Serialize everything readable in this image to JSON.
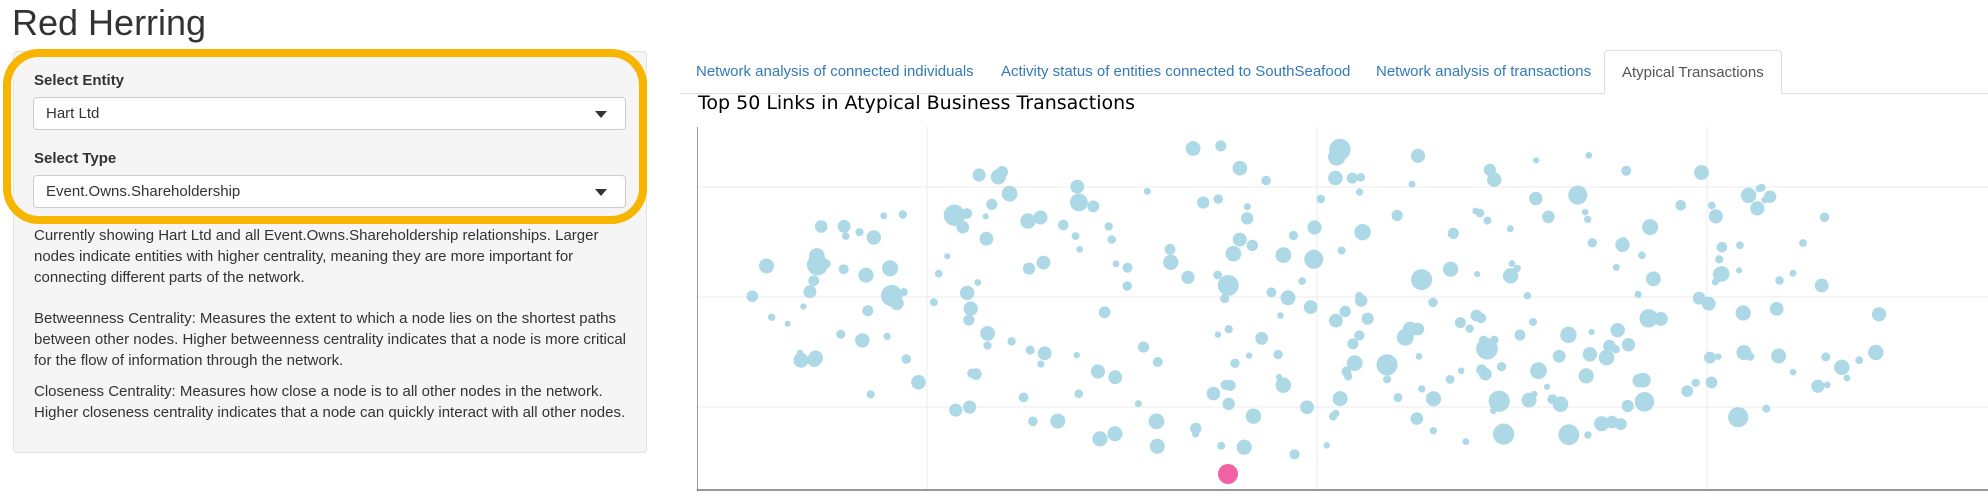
{
  "app": {
    "title": "Red Herring"
  },
  "sidebar": {
    "entity_label": "Select Entity",
    "entity_value": "Hart Ltd",
    "type_label": "Select Type",
    "type_value": "Event.Owns.Shareholdership",
    "help_1": "Currently showing Hart Ltd and all Event.Owns.Shareholdership relationships. Larger nodes indicate entities with higher centrality, meaning they are more important for connecting different parts of the network.",
    "help_2": "Betweenness Centrality: Measures the extent to which a node lies on the shortest paths between other nodes. Higher betweenness centrality indicates that a node is more critical for the flow of information through the network.",
    "help_3": "Closeness Centrality: Measures how close a node is to all other nodes in the network. Higher closeness centrality indicates that a node can quickly interact with all other nodes."
  },
  "tabs": [
    {
      "label": "Network analysis of connected individuals",
      "active": false
    },
    {
      "label": "Activity status of entities connected to SouthSeafood",
      "active": false
    },
    {
      "label": "Network analysis of transactions",
      "active": false
    },
    {
      "label": "Atypical Transactions",
      "active": true
    }
  ],
  "chart": {
    "title": "Top 50 Links in Atypical Business Transactions",
    "node_color": "#add8e6",
    "highlight_color": "#f062a4",
    "grid_color": "#ebebeb"
  },
  "colors": {
    "accent": "#f7b500",
    "link": "#337ab7"
  }
}
